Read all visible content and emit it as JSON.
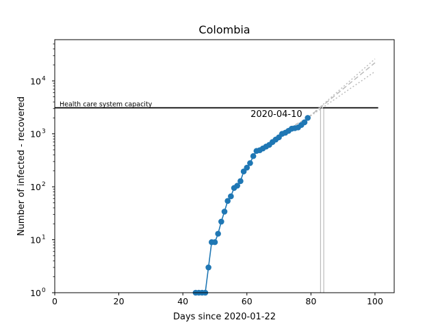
{
  "chart_data": {
    "type": "line",
    "title": "Colombia",
    "xlabel": "Days since 2020-01-22",
    "ylabel": "Number of infected - recovered",
    "xlim": [
      0,
      106
    ],
    "ylim": [
      1,
      60000
    ],
    "y_scale": "log",
    "x_ticks": [
      0,
      20,
      40,
      60,
      80,
      100
    ],
    "x_tick_labels": [
      "0",
      "20",
      "40",
      "60",
      "80",
      "100"
    ],
    "y_ticks": [
      1,
      10,
      100,
      1000,
      10000
    ],
    "y_tick_base": "10",
    "y_tick_exponents": [
      "0",
      "1",
      "2",
      "3",
      "4"
    ],
    "grid": false,
    "capacity": {
      "value": 3100,
      "x_range": [
        0,
        101
      ],
      "label": "Health care system capacity"
    },
    "annotation": {
      "text": "2020-04-10",
      "x": 79,
      "y": 2500
    },
    "vertical_markers": [
      83,
      84
    ],
    "series": [
      {
        "style": "observed",
        "color": "#1f77b4",
        "x": [
          44,
          45,
          46,
          47,
          48,
          49,
          50,
          51,
          52,
          53,
          54,
          55,
          56,
          57,
          58,
          59,
          60,
          61,
          62,
          63,
          64,
          65,
          66,
          67,
          68,
          69,
          70,
          71,
          72,
          73,
          74,
          75,
          76,
          77,
          78,
          79
        ],
        "y": [
          1,
          1,
          1,
          1,
          3,
          9,
          9,
          13,
          22,
          34,
          54,
          66,
          95,
          105,
          128,
          195,
          230,
          280,
          380,
          475,
          490,
          530,
          575,
          620,
          700,
          780,
          860,
          1000,
          1050,
          1140,
          1250,
          1280,
          1320,
          1470,
          1650,
          2000
        ]
      },
      {
        "style": "projection-dashed",
        "color": "#bbbbbb",
        "x": [
          79,
          100
        ],
        "y": [
          2000,
          22000
        ]
      },
      {
        "style": "projection-dotted-upper",
        "color": "#bbbbbb",
        "x": [
          79,
          100
        ],
        "y": [
          2000,
          26000
        ]
      },
      {
        "style": "projection-dotted-lower",
        "color": "#bbbbbb",
        "x": [
          79,
          100
        ],
        "y": [
          2000,
          15000
        ]
      },
      {
        "style": "fit-dashed",
        "color": "#bbbbbb",
        "x": [
          70,
          79
        ],
        "y": [
          1000,
          2000
        ]
      }
    ]
  }
}
